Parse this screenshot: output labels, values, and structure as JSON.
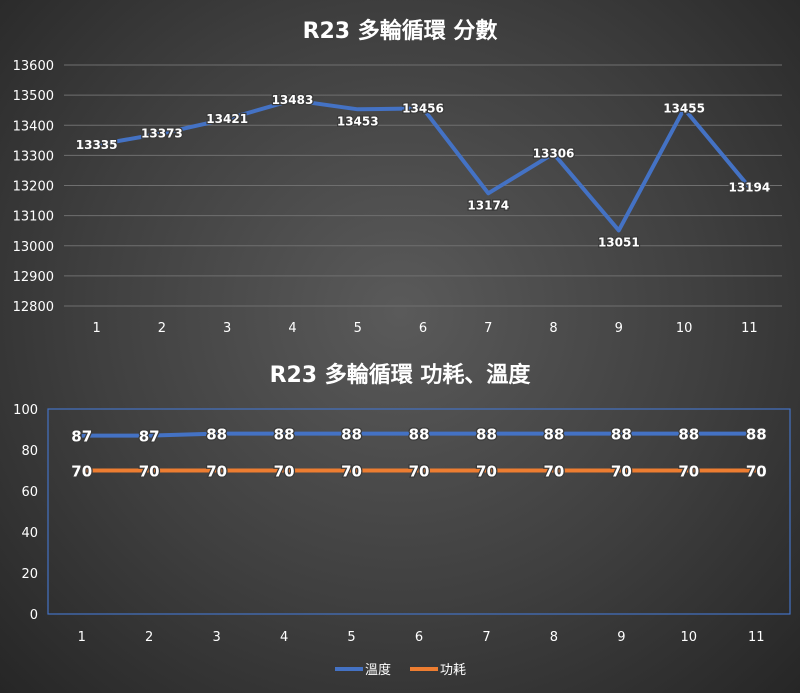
{
  "chart_data": [
    {
      "type": "line",
      "title": "R23 多輪循環 分數",
      "categories": [
        "1",
        "2",
        "3",
        "4",
        "5",
        "6",
        "7",
        "8",
        "9",
        "10",
        "11"
      ],
      "ylim": [
        12800,
        13600
      ],
      "yticks": [
        "12800",
        "12900",
        "13000",
        "13100",
        "13200",
        "13300",
        "13400",
        "13500",
        "13600"
      ],
      "grid": true,
      "series": [
        {
          "values": [
            13335,
            13373,
            13421,
            13483,
            13453,
            13456,
            13174,
            13306,
            13051,
            13455,
            13194
          ],
          "color": "#4472c4"
        }
      ]
    },
    {
      "type": "line",
      "title": "R23 多輪循環 功耗、溫度",
      "categories": [
        "1",
        "2",
        "3",
        "4",
        "5",
        "6",
        "7",
        "8",
        "9",
        "10",
        "11"
      ],
      "ylim": [
        0,
        100
      ],
      "yticks": [
        "0",
        "20",
        "40",
        "60",
        "80",
        "100"
      ],
      "grid": false,
      "legend_position": "bottom",
      "series": [
        {
          "name": "溫度",
          "values": [
            87,
            87,
            88,
            88,
            88,
            88,
            88,
            88,
            88,
            88,
            88
          ],
          "color": "#4472c4"
        },
        {
          "name": "功耗",
          "values": [
            70,
            70,
            70,
            70,
            70,
            70,
            70,
            70,
            70,
            70,
            70
          ],
          "color": "#ed7d31"
        }
      ]
    }
  ]
}
